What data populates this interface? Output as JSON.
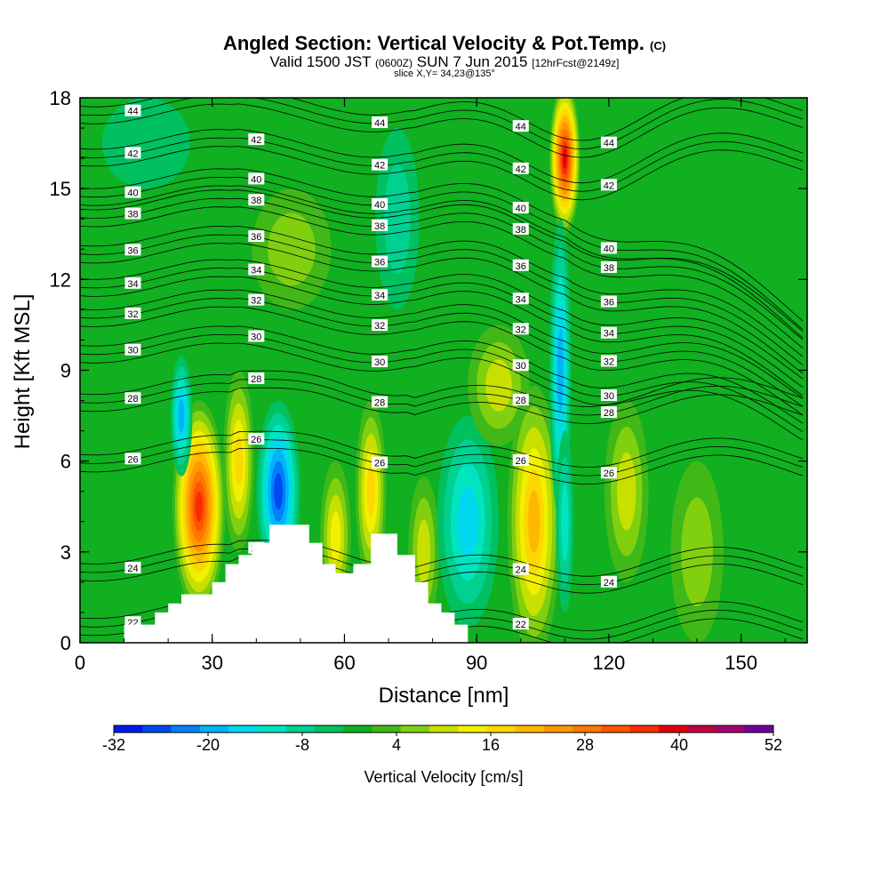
{
  "header": {
    "title": "Angled Section: Vertical Velocity & Pot.Temp.",
    "title_mark": "(C)",
    "valid_prefix": "Valid 1500 JST",
    "valid_z": "(0600Z)",
    "valid_date": "SUN 7 Jun 2015",
    "valid_fcst": "[12hrFcst@2149z]",
    "slice": "slice X,Y= 34,23@135°"
  },
  "chart_data": {
    "type": "heatmap",
    "title": "Angled Section: Vertical Velocity & Pot.Temp.",
    "xlabel": "Distance [nm]",
    "ylabel": "Height [Kft MSL]",
    "xlim": [
      0,
      165
    ],
    "ylim": [
      0,
      18
    ],
    "x_ticks": [
      "0",
      "30",
      "60",
      "90",
      "120",
      "150"
    ],
    "y_ticks": [
      "0",
      "3",
      "6",
      "9",
      "12",
      "15",
      "18"
    ],
    "colorbar": {
      "title": "Vertical Velocity [cm/s]",
      "tick_labels": [
        "-32",
        "-20",
        "-8",
        "4",
        "16",
        "28",
        "40",
        "52"
      ],
      "min": -32,
      "max": 52,
      "step": 4,
      "colors": [
        "#0018e8",
        "#0048f0",
        "#0080f8",
        "#00b4f8",
        "#00d8f0",
        "#00e4c0",
        "#00d090",
        "#00c060",
        "#10b020",
        "#40b818",
        "#80d010",
        "#c8e000",
        "#f0f000",
        "#fcd800",
        "#ffb800",
        "#ff9800",
        "#ff7800",
        "#ff5400",
        "#f82c00",
        "#e00010",
        "#c00040",
        "#a00070",
        "#700098"
      ]
    },
    "background_value": 0,
    "velocity_cells": [
      {
        "x": 27,
        "z": 4.5,
        "w": 12,
        "h": 7,
        "v": 40
      },
      {
        "x": 36,
        "z": 6,
        "w": 7,
        "h": 6,
        "v": 20
      },
      {
        "x": 23,
        "z": 7.5,
        "w": 5,
        "h": 4,
        "v": -20
      },
      {
        "x": 45,
        "z": 5,
        "w": 10,
        "h": 6,
        "v": -28
      },
      {
        "x": 58,
        "z": 3.5,
        "w": 7,
        "h": 5,
        "v": 16
      },
      {
        "x": 66,
        "z": 5,
        "w": 7,
        "h": 6,
        "v": 20
      },
      {
        "x": 78,
        "z": 3,
        "w": 7,
        "h": 5,
        "v": 12
      },
      {
        "x": 88,
        "z": 4,
        "w": 14,
        "h": 7,
        "v": -16
      },
      {
        "x": 95,
        "z": 8.5,
        "w": 14,
        "h": 4,
        "v": 12
      },
      {
        "x": 103,
        "z": 4,
        "w": 12,
        "h": 9,
        "v": 24
      },
      {
        "x": 110,
        "z": 16,
        "w": 7,
        "h": 5,
        "v": 44
      },
      {
        "x": 109,
        "z": 9,
        "w": 5,
        "h": 10,
        "v": -20
      },
      {
        "x": 110,
        "z": 4,
        "w": 4,
        "h": 6,
        "v": -12
      },
      {
        "x": 124,
        "z": 5,
        "w": 10,
        "h": 6,
        "v": 12
      },
      {
        "x": 140,
        "z": 3,
        "w": 12,
        "h": 6,
        "v": 8
      },
      {
        "x": 72,
        "z": 14,
        "w": 10,
        "h": 6,
        "v": -8
      },
      {
        "x": 48,
        "z": 13,
        "w": 18,
        "h": 4,
        "v": 8
      },
      {
        "x": 15,
        "z": 16.5,
        "w": 20,
        "h": 3,
        "v": -4
      }
    ],
    "terrain": [
      [
        0,
        0
      ],
      [
        10,
        0
      ],
      [
        10,
        0.6
      ],
      [
        17,
        0.6
      ],
      [
        17,
        1.0
      ],
      [
        20,
        1.0
      ],
      [
        20,
        1.3
      ],
      [
        23,
        1.3
      ],
      [
        23,
        1.6
      ],
      [
        30,
        1.6
      ],
      [
        30,
        2.0
      ],
      [
        33,
        2.0
      ],
      [
        33,
        2.6
      ],
      [
        36,
        2.6
      ],
      [
        36,
        2.9
      ],
      [
        39,
        2.9
      ],
      [
        39,
        3.3
      ],
      [
        43,
        3.3
      ],
      [
        43,
        3.9
      ],
      [
        52,
        3.9
      ],
      [
        52,
        3.3
      ],
      [
        55,
        3.3
      ],
      [
        55,
        2.6
      ],
      [
        58,
        2.6
      ],
      [
        58,
        2.3
      ],
      [
        62,
        2.3
      ],
      [
        62,
        2.6
      ],
      [
        66,
        2.6
      ],
      [
        66,
        3.6
      ],
      [
        72,
        3.6
      ],
      [
        72,
        2.9
      ],
      [
        76,
        2.9
      ],
      [
        76,
        2.0
      ],
      [
        79,
        2.0
      ],
      [
        79,
        1.3
      ],
      [
        82,
        1.3
      ],
      [
        82,
        1.0
      ],
      [
        85,
        1.0
      ],
      [
        85,
        0.6
      ],
      [
        88,
        0.6
      ],
      [
        88,
        0
      ],
      [
        165,
        0
      ]
    ],
    "isentropes": {
      "units": "C",
      "values": [
        22,
        24,
        26,
        28,
        30,
        32,
        34,
        36,
        38,
        40,
        42,
        44
      ],
      "labels": [
        "22",
        "24",
        "26",
        "28",
        "30",
        "32",
        "34",
        "36",
        "38",
        "40",
        "42",
        "44"
      ]
    }
  }
}
